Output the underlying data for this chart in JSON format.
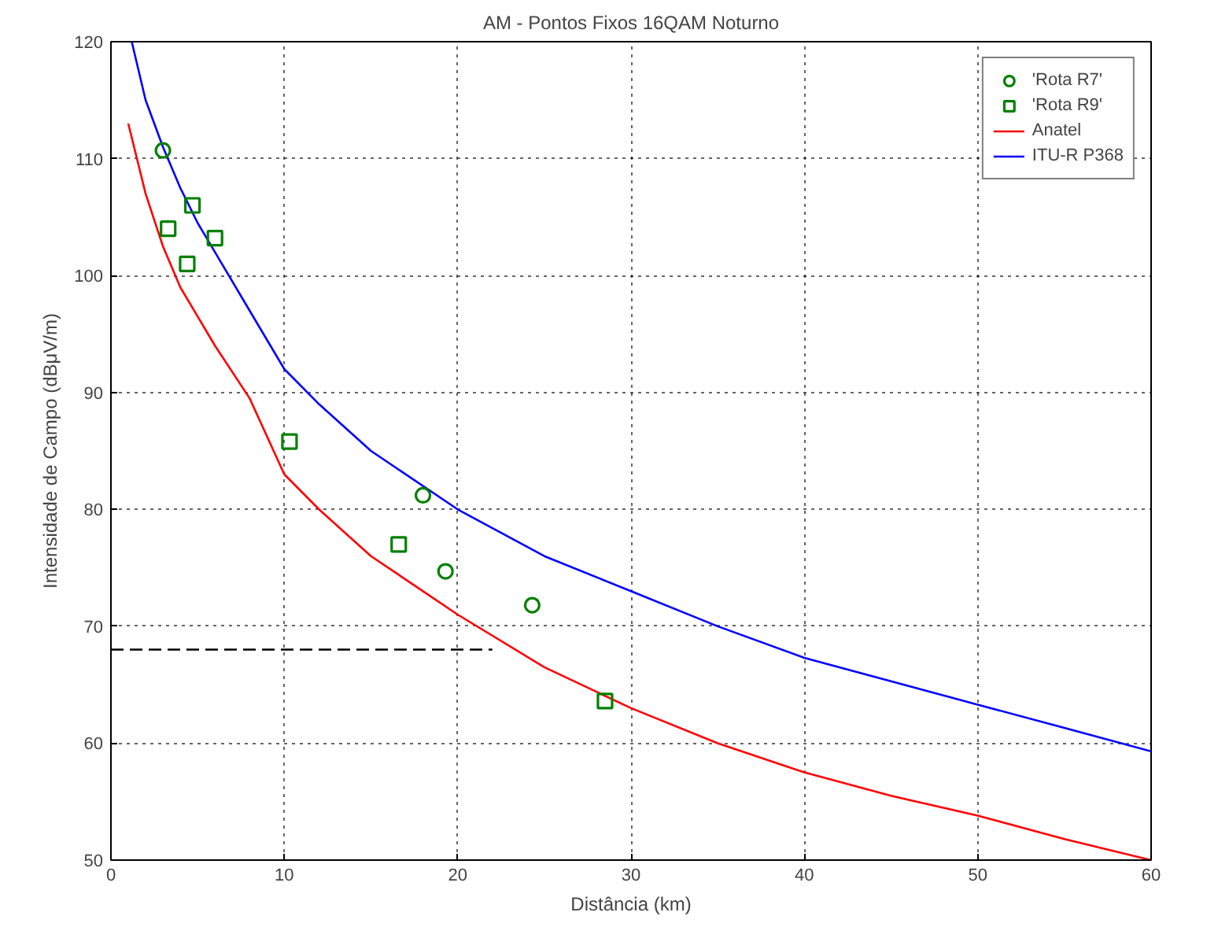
{
  "chart_data": {
    "type": "line",
    "title": "AM - Pontos Fixos 16QAM Noturno",
    "xlabel": "Distância (km)",
    "ylabel": "Intensidade de Campo (dBμV/m)",
    "xlim": [
      0,
      60
    ],
    "ylim": [
      50,
      120
    ],
    "xticks": [
      0,
      10,
      20,
      30,
      40,
      50,
      60
    ],
    "yticks": [
      50,
      60,
      70,
      80,
      90,
      100,
      110,
      120
    ],
    "grid": true,
    "legend": "top right",
    "series": [
      {
        "name": "'Rota R7'",
        "type": "scatter",
        "marker": "circle",
        "color": "#008000",
        "x": [
          3,
          18,
          19.3,
          24.3
        ],
        "values": [
          110.7,
          81.2,
          74.7,
          71.8
        ]
      },
      {
        "name": "'Rota R9'",
        "type": "scatter",
        "marker": "square",
        "color": "#008000",
        "x": [
          3.3,
          4.7,
          4.4,
          6,
          10.3,
          16.6,
          28.5
        ],
        "values": [
          104,
          106,
          101,
          103.2,
          85.8,
          77,
          63.6
        ]
      },
      {
        "name": "Anatel",
        "type": "line",
        "color": "#ff0000",
        "x": [
          1,
          2,
          3,
          4,
          5,
          6,
          8,
          10,
          12,
          15,
          20,
          25,
          30,
          35,
          40,
          45,
          50,
          55,
          60
        ],
        "values": [
          113,
          107,
          102.5,
          99,
          96.5,
          94,
          89.5,
          83,
          80,
          76,
          71,
          66.5,
          63,
          60,
          57.5,
          55.5,
          53.8,
          51.8,
          50
        ]
      },
      {
        "name": "ITU-R P368",
        "type": "line",
        "color": "#0000ff",
        "x": [
          1.2,
          2,
          3,
          4,
          5,
          6,
          8,
          10,
          12,
          15,
          20,
          25,
          30,
          35,
          40,
          45,
          50,
          55,
          60
        ],
        "values": [
          120,
          115,
          111,
          107.5,
          104.5,
          102,
          97,
          92,
          89,
          85,
          80,
          76,
          73,
          70,
          67.3,
          65.3,
          63.3,
          61.3,
          59.3
        ]
      },
      {
        "line_style": "dashed",
        "color": "#000000",
        "x": [
          0,
          22
        ],
        "values": [
          68,
          68
        ]
      }
    ]
  }
}
